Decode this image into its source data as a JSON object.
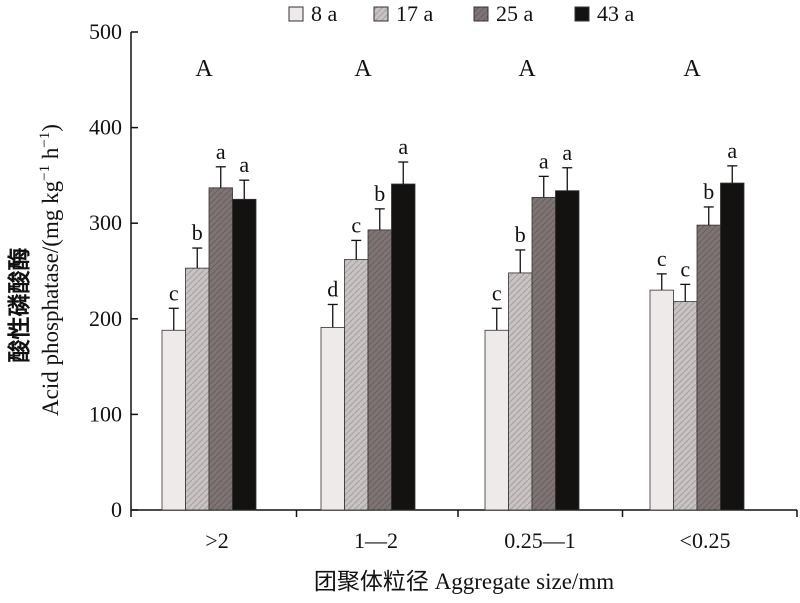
{
  "chart_data": {
    "type": "bar",
    "categories": [
      ">2",
      "1—2",
      "0.25—1",
      "<0.25"
    ],
    "series": [
      {
        "name": "8 a",
        "values": [
          188,
          191,
          188,
          230
        ],
        "errors": [
          23,
          24,
          23,
          17
        ],
        "letters": [
          "c",
          "d",
          "c",
          "c"
        ],
        "color": "#efeaea",
        "hatch": false
      },
      {
        "name": "17 a",
        "values": [
          253,
          262,
          248,
          218
        ],
        "errors": [
          21,
          20,
          24,
          18
        ],
        "letters": [
          "b",
          "c",
          "b",
          "c"
        ],
        "color": "#c9c2c2",
        "hatch": true
      },
      {
        "name": "25 a",
        "values": [
          337,
          293,
          327,
          298
        ],
        "errors": [
          22,
          22,
          22,
          19
        ],
        "letters": [
          "a",
          "b",
          "a",
          "b"
        ],
        "color": "#7f7474",
        "hatch": true
      },
      {
        "name": "43 a",
        "values": [
          325,
          341,
          334,
          342
        ],
        "errors": [
          20,
          23,
          24,
          18
        ],
        "letters": [
          "a",
          "a",
          "a",
          "a"
        ],
        "color": "#141111",
        "hatch": false
      }
    ],
    "group_letters": [
      "A",
      "A",
      "A",
      "A"
    ],
    "ylabel_cn": "酸性磷酸酶",
    "ylabel_en": "Acid phosphatase/(mg kg",
    "ylabel_sup1": "−1",
    "ylabel_mid": " h",
    "ylabel_sup2": "−1",
    "ylabel_end": ")",
    "xlabel": "团聚体粒径 Aggregate size/mm",
    "ylim": [
      0,
      500
    ],
    "yticks": [
      0,
      100,
      200,
      300,
      400,
      500
    ],
    "grid": false,
    "legend_position": "top"
  }
}
